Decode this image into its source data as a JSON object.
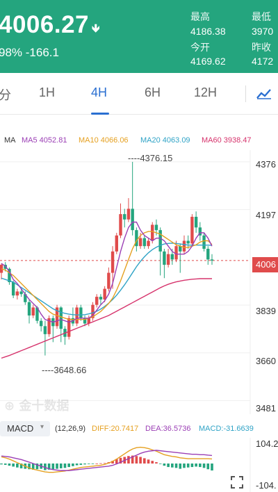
{
  "header": {
    "price": "4006.27",
    "change": "98% -166.1",
    "high_label": "最高",
    "high_value": "4186.38",
    "low_label": "最低",
    "low_value": "3970",
    "open_label": "今开",
    "open_value": "4169.62",
    "prev_close_label": "昨收",
    "prev_close_value": "4172",
    "bg_color": "#24a57e"
  },
  "tabs": {
    "items": [
      "分",
      "1H",
      "4H",
      "6H",
      "12H"
    ],
    "active": "4H",
    "active_color": "#2a6fd1",
    "chart_icon": "trend-chart-icon"
  },
  "ma_legend": {
    "ma": "MA",
    "ma5": "MA5 4052.81",
    "ma10": "MA10 4066.06",
    "ma20": "MA20 4063.09",
    "ma60": "MA60 3938.47",
    "colors": {
      "ma5": "#9b3fb5",
      "ma10": "#e5a020",
      "ma20": "#2fa3c6",
      "ma60": "#d6336c"
    }
  },
  "y_axis": [
    "4376",
    "4197",
    "3839",
    "3660",
    "3481"
  ],
  "current_tag": "4006",
  "annotations": {
    "high": "4376.15",
    "low": "3648.66"
  },
  "watermark": "金十数据",
  "macd": {
    "selector_label": "MACD",
    "params": "(12,26,9)",
    "diff": "DIFF:20.7417",
    "dea": "DEA:36.5736",
    "macd": "MACD:-31.6639",
    "y_top": "104.2",
    "y_bottom": "-104.",
    "colors": {
      "diff": "#e5a020",
      "dea": "#9b3fb5",
      "macd": "#2fa3c6"
    }
  },
  "chart_data": {
    "type": "candlestick",
    "y_range": [
      3430,
      4420
    ],
    "candles": [
      [
        3960,
        3990,
        3935,
        3995
      ],
      [
        3990,
        3975,
        3965,
        4000
      ],
      [
        3975,
        3925,
        3915,
        3980
      ],
      [
        3925,
        3875,
        3865,
        3930
      ],
      [
        3875,
        3890,
        3860,
        3900
      ],
      [
        3890,
        3880,
        3870,
        3900
      ],
      [
        3880,
        3850,
        3840,
        3890
      ],
      [
        3850,
        3800,
        3770,
        3860
      ],
      [
        3800,
        3830,
        3790,
        3840
      ],
      [
        3830,
        3780,
        3770,
        3835
      ],
      [
        3780,
        3760,
        3740,
        3790
      ],
      [
        3760,
        3730,
        3650,
        3780
      ],
      [
        3730,
        3790,
        3720,
        3800
      ],
      [
        3790,
        3760,
        3700,
        3800
      ],
      [
        3760,
        3830,
        3750,
        3840
      ],
      [
        3830,
        3750,
        3700,
        3835
      ],
      [
        3750,
        3720,
        3690,
        3760
      ],
      [
        3720,
        3790,
        3710,
        3800
      ],
      [
        3790,
        3770,
        3760,
        3830
      ],
      [
        3770,
        3830,
        3760,
        3840
      ],
      [
        3830,
        3790,
        3780,
        3840
      ],
      [
        3790,
        3770,
        3760,
        3800
      ],
      [
        3770,
        3790,
        3760,
        3800
      ],
      [
        3790,
        3840,
        3780,
        3850
      ],
      [
        3840,
        3870,
        3830,
        3880
      ],
      [
        3870,
        3860,
        3840,
        3880
      ],
      [
        3860,
        3900,
        3850,
        3910
      ],
      [
        3900,
        3960,
        3890,
        3980
      ],
      [
        3960,
        4040,
        3900,
        4060
      ],
      [
        4040,
        4100,
        4030,
        4110
      ],
      [
        4100,
        4180,
        4090,
        4220
      ],
      [
        4180,
        4160,
        4130,
        4200
      ],
      [
        4160,
        4200,
        4150,
        4240
      ],
      [
        4200,
        4120,
        4100,
        4376
      ],
      [
        4120,
        4060,
        4040,
        4130
      ],
      [
        4060,
        4090,
        4050,
        4110
      ],
      [
        4090,
        4060,
        4050,
        4100
      ],
      [
        4060,
        4080,
        4050,
        4090
      ],
      [
        4080,
        4140,
        4070,
        4150
      ],
      [
        4140,
        4120,
        4100,
        4160
      ],
      [
        4120,
        4040,
        3950,
        4130
      ],
      [
        4040,
        3990,
        3940,
        4050
      ],
      [
        3990,
        4030,
        3980,
        4050
      ],
      [
        4030,
        4010,
        3990,
        4050
      ],
      [
        4010,
        4060,
        4000,
        4080
      ],
      [
        4060,
        4040,
        3960,
        4070
      ],
      [
        4040,
        4080,
        4030,
        4100
      ],
      [
        4080,
        4070,
        4050,
        4100
      ],
      [
        4070,
        4170,
        4060,
        4180
      ],
      [
        4170,
        4130,
        4110,
        4190
      ],
      [
        4130,
        4100,
        4080,
        4150
      ],
      [
        4100,
        4050,
        4040,
        4110
      ],
      [
        4050,
        4010,
        3990,
        4060
      ],
      [
        4010,
        4006,
        3990,
        4030
      ]
    ],
    "ma5": [
      3995,
      3985,
      3965,
      3935,
      3920,
      3900,
      3880,
      3860,
      3845,
      3830,
      3805,
      3785,
      3780,
      3775,
      3780,
      3785,
      3780,
      3775,
      3780,
      3790,
      3790,
      3790,
      3790,
      3800,
      3820,
      3840,
      3855,
      3880,
      3920,
      3980,
      4040,
      4090,
      4130,
      4150,
      4150,
      4120,
      4100,
      4090,
      4080,
      4090,
      4090,
      4080,
      4060,
      4040,
      4030,
      4030,
      4030,
      4040,
      4060,
      4090,
      4110,
      4110,
      4090,
      4060
    ],
    "ma10": [
      3975,
      3970,
      3960,
      3950,
      3935,
      3920,
      3905,
      3890,
      3875,
      3860,
      3845,
      3830,
      3815,
      3805,
      3800,
      3795,
      3790,
      3785,
      3785,
      3785,
      3785,
      3785,
      3790,
      3795,
      3805,
      3815,
      3830,
      3845,
      3865,
      3895,
      3930,
      3970,
      4010,
      4050,
      4080,
      4100,
      4110,
      4115,
      4115,
      4110,
      4105,
      4095,
      4085,
      4075,
      4065,
      4060,
      4055,
      4055,
      4060,
      4065,
      4075,
      4080,
      4080,
      4066
    ],
    "ma20": [
      3940,
      3935,
      3930,
      3925,
      3915,
      3905,
      3895,
      3885,
      3875,
      3865,
      3855,
      3845,
      3835,
      3825,
      3818,
      3812,
      3808,
      3805,
      3803,
      3802,
      3802,
      3803,
      3806,
      3810,
      3816,
      3824,
      3834,
      3846,
      3860,
      3876,
      3895,
      3915,
      3937,
      3960,
      3983,
      4003,
      4020,
      4035,
      4047,
      4056,
      4063,
      4068,
      4070,
      4071,
      4070,
      4068,
      4066,
      4064,
      4064,
      4064,
      4064,
      4064,
      4064,
      4063
    ],
    "ma60": [
      3640,
      3645,
      3650,
      3656,
      3662,
      3668,
      3674,
      3680,
      3686,
      3692,
      3698,
      3704,
      3710,
      3716,
      3722,
      3728,
      3734,
      3740,
      3746,
      3752,
      3758,
      3764,
      3770,
      3776,
      3782,
      3788,
      3794,
      3800,
      3808,
      3816,
      3824,
      3832,
      3840,
      3848,
      3856,
      3864,
      3872,
      3880,
      3888,
      3896,
      3904,
      3911,
      3917,
      3922,
      3926,
      3929,
      3932,
      3934,
      3936,
      3937,
      3938,
      3938,
      3938,
      3938
    ],
    "macd_hist": [
      -4,
      -6,
      -10,
      -14,
      -18,
      -22,
      -24,
      -26,
      -28,
      -26,
      -24,
      -30,
      -28,
      -26,
      -24,
      -22,
      -20,
      -16,
      -12,
      -8,
      -6,
      -4,
      -2,
      -1,
      0,
      1,
      2,
      6,
      12,
      20,
      26,
      30,
      34,
      36,
      34,
      30,
      24,
      18,
      12,
      6,
      -2,
      -10,
      -16,
      -18,
      -20,
      -24,
      -20,
      -18,
      -16,
      -14,
      -16,
      -20,
      -26,
      -31.66
    ],
    "diff": [
      30,
      26,
      20,
      12,
      4,
      -4,
      -12,
      -20,
      -26,
      -30,
      -34,
      -38,
      -40,
      -40,
      -38,
      -36,
      -34,
      -30,
      -26,
      -22,
      -18,
      -16,
      -14,
      -12,
      -10,
      -8,
      -4,
      2,
      10,
      20,
      32,
      44,
      56,
      66,
      72,
      74,
      72,
      68,
      62,
      56,
      48,
      40,
      36,
      32,
      30,
      26,
      24,
      22,
      22,
      22,
      22,
      22,
      22,
      20.74
    ],
    "dea": [
      34,
      32,
      30,
      26,
      22,
      18,
      12,
      6,
      0,
      -6,
      -12,
      -18,
      -24,
      -28,
      -30,
      -32,
      -32,
      -32,
      -30,
      -28,
      -26,
      -24,
      -22,
      -20,
      -18,
      -16,
      -14,
      -12,
      -8,
      -2,
      6,
      14,
      22,
      30,
      38,
      46,
      52,
      56,
      58,
      60,
      58,
      56,
      54,
      52,
      50,
      48,
      46,
      44,
      42,
      42,
      40,
      40,
      38,
      36.57
    ],
    "macd_range": [
      -104.2,
      104.2
    ]
  }
}
